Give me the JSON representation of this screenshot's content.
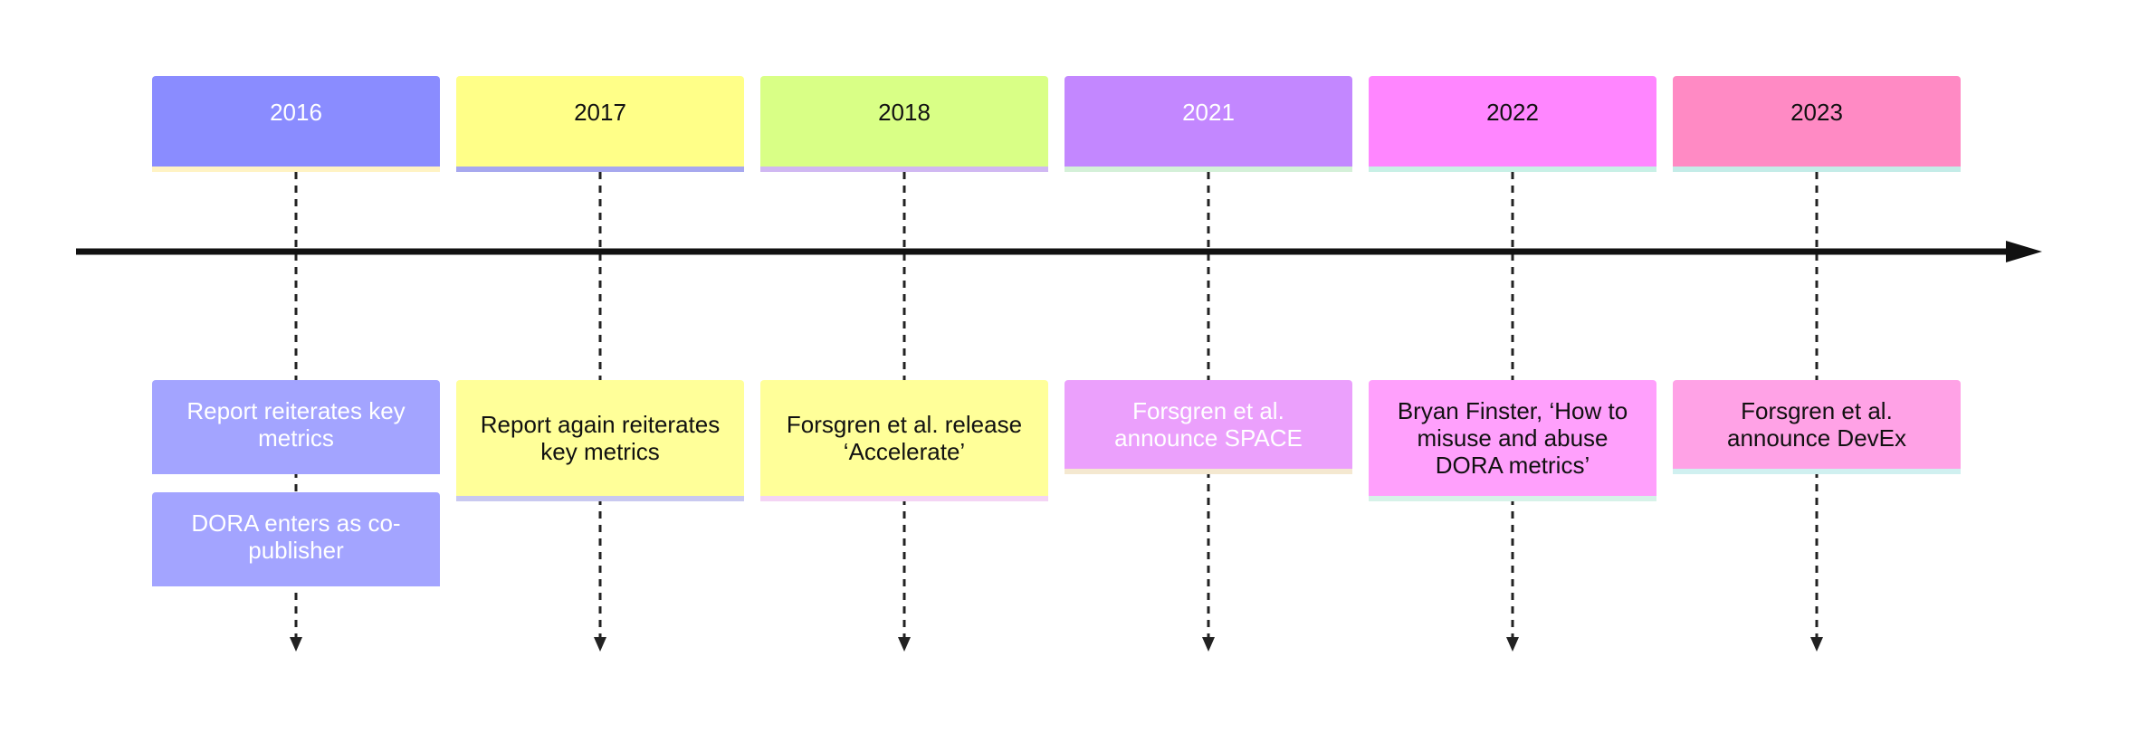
{
  "timeline": {
    "columns": [
      {
        "year": "2016",
        "color": "#8a8cff",
        "text_color": "#ffffff",
        "accent": "#fff3c4",
        "events": [
          {
            "text": "Report reiterates key metrics",
            "color": "#a3a4ff",
            "text_color": "#ffffff",
            "accent": "#a3a4ff"
          },
          {
            "text": "DORA enters as co-publisher",
            "color": "#a3a4ff",
            "text_color": "#ffffff",
            "accent": "#a3a4ff"
          }
        ]
      },
      {
        "year": "2017",
        "color": "#ffff88",
        "text_color": "#111111",
        "accent": "#a7a8ee",
        "events": [
          {
            "text": "Report again reiterates key metrics",
            "color": "#ffff99",
            "text_color": "#111111",
            "accent": "#c9c9f0"
          }
        ]
      },
      {
        "year": "2018",
        "color": "#d9ff86",
        "text_color": "#111111",
        "accent": "#d0b8f2",
        "events": [
          {
            "text": "Forsgren et al. release ‘Accelerate’",
            "color": "#ffff99",
            "text_color": "#111111",
            "accent": "#f4d4f4"
          }
        ]
      },
      {
        "year": "2021",
        "color": "#c387ff",
        "text_color": "#ffffff",
        "accent": "#d4f0d8",
        "events": [
          {
            "text": "Forsgren et al. announce SPACE",
            "color": "#eba0fc",
            "text_color": "#ffffff",
            "accent": "#f4e8d0"
          }
        ]
      },
      {
        "year": "2022",
        "color": "#ff86ff",
        "text_color": "#111111",
        "accent": "#c8f0e6",
        "events": [
          {
            "text": "Bryan Finster, ‘How to misuse and abuse DORA metrics’",
            "color": "#ffa0fc",
            "text_color": "#111111",
            "accent": "#d6f2e8"
          }
        ]
      },
      {
        "year": "2023",
        "color": "#ff8ac4",
        "text_color": "#111111",
        "accent": "#c4ece8",
        "events": [
          {
            "text": "Forsgren et al. announce DevEx",
            "color": "#ffa2e6",
            "text_color": "#111111",
            "accent": "#d0f0f0"
          }
        ]
      }
    ],
    "axis_color": "#111111",
    "connector_color": "#222222"
  }
}
